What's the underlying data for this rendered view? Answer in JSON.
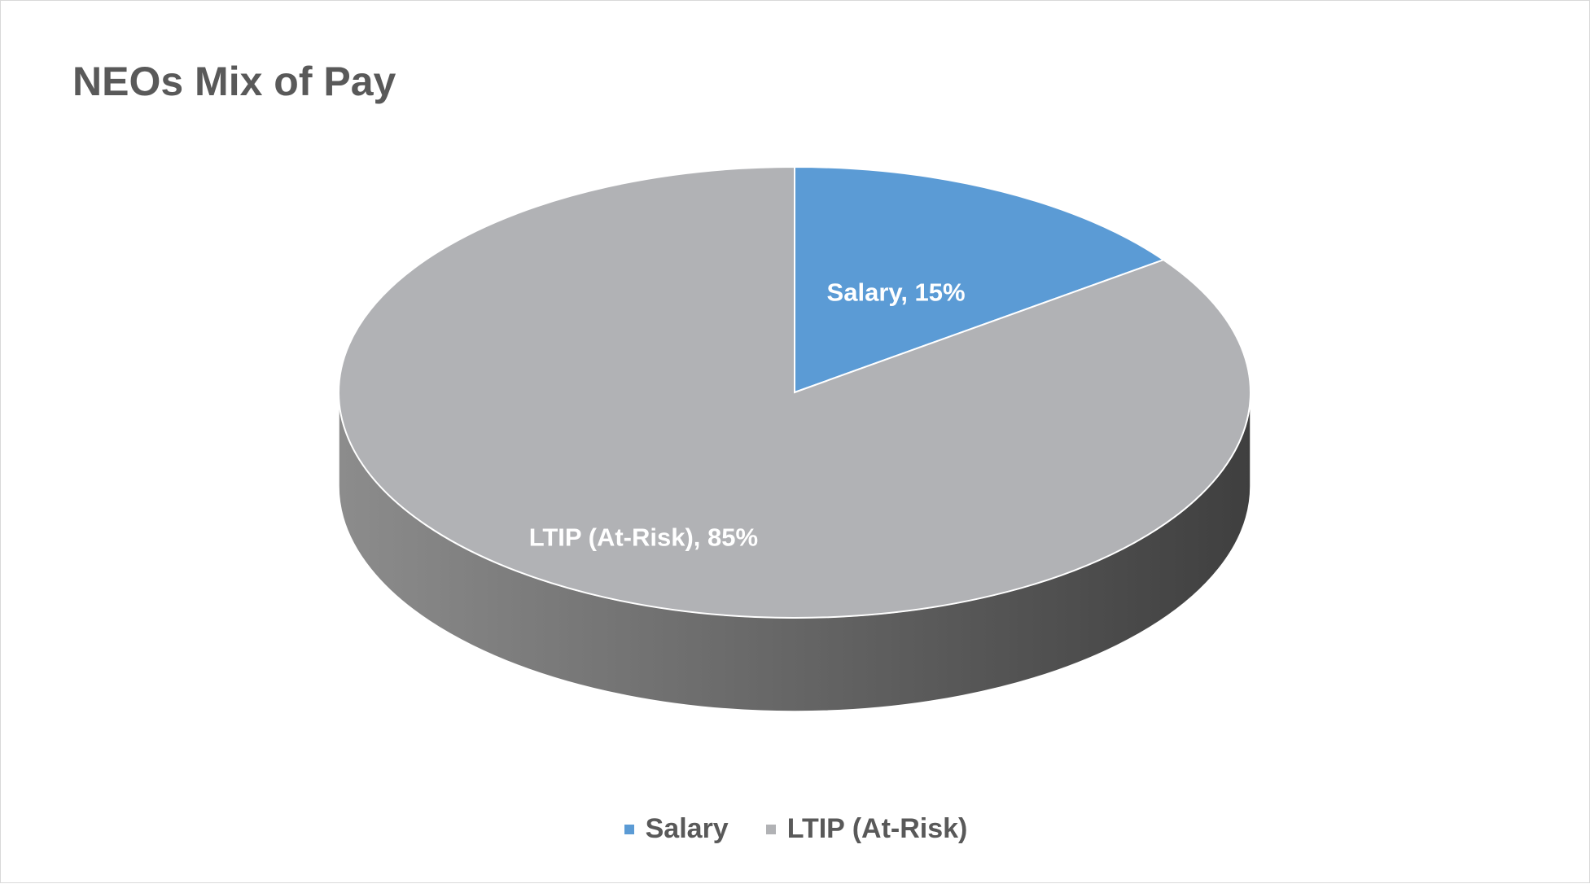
{
  "chart_data": {
    "type": "pie",
    "style": "3d",
    "title": "NEOs Mix of Pay",
    "categories": [
      "Salary",
      "LTIP (At-Risk)"
    ],
    "values": [
      15,
      85
    ],
    "unit": "%",
    "data_labels": [
      "Salary, 15%",
      "LTIP (At-Risk), 85%"
    ],
    "colors": [
      "#5b9bd5",
      "#b1b2b5"
    ],
    "side_colors": {
      "light": "#8c8c8c",
      "dark": "#3f3f3f"
    },
    "start_angle": "12 o'clock, clockwise",
    "legend": {
      "position": "bottom",
      "entries": [
        "Salary",
        "LTIP (At-Risk)"
      ]
    }
  }
}
